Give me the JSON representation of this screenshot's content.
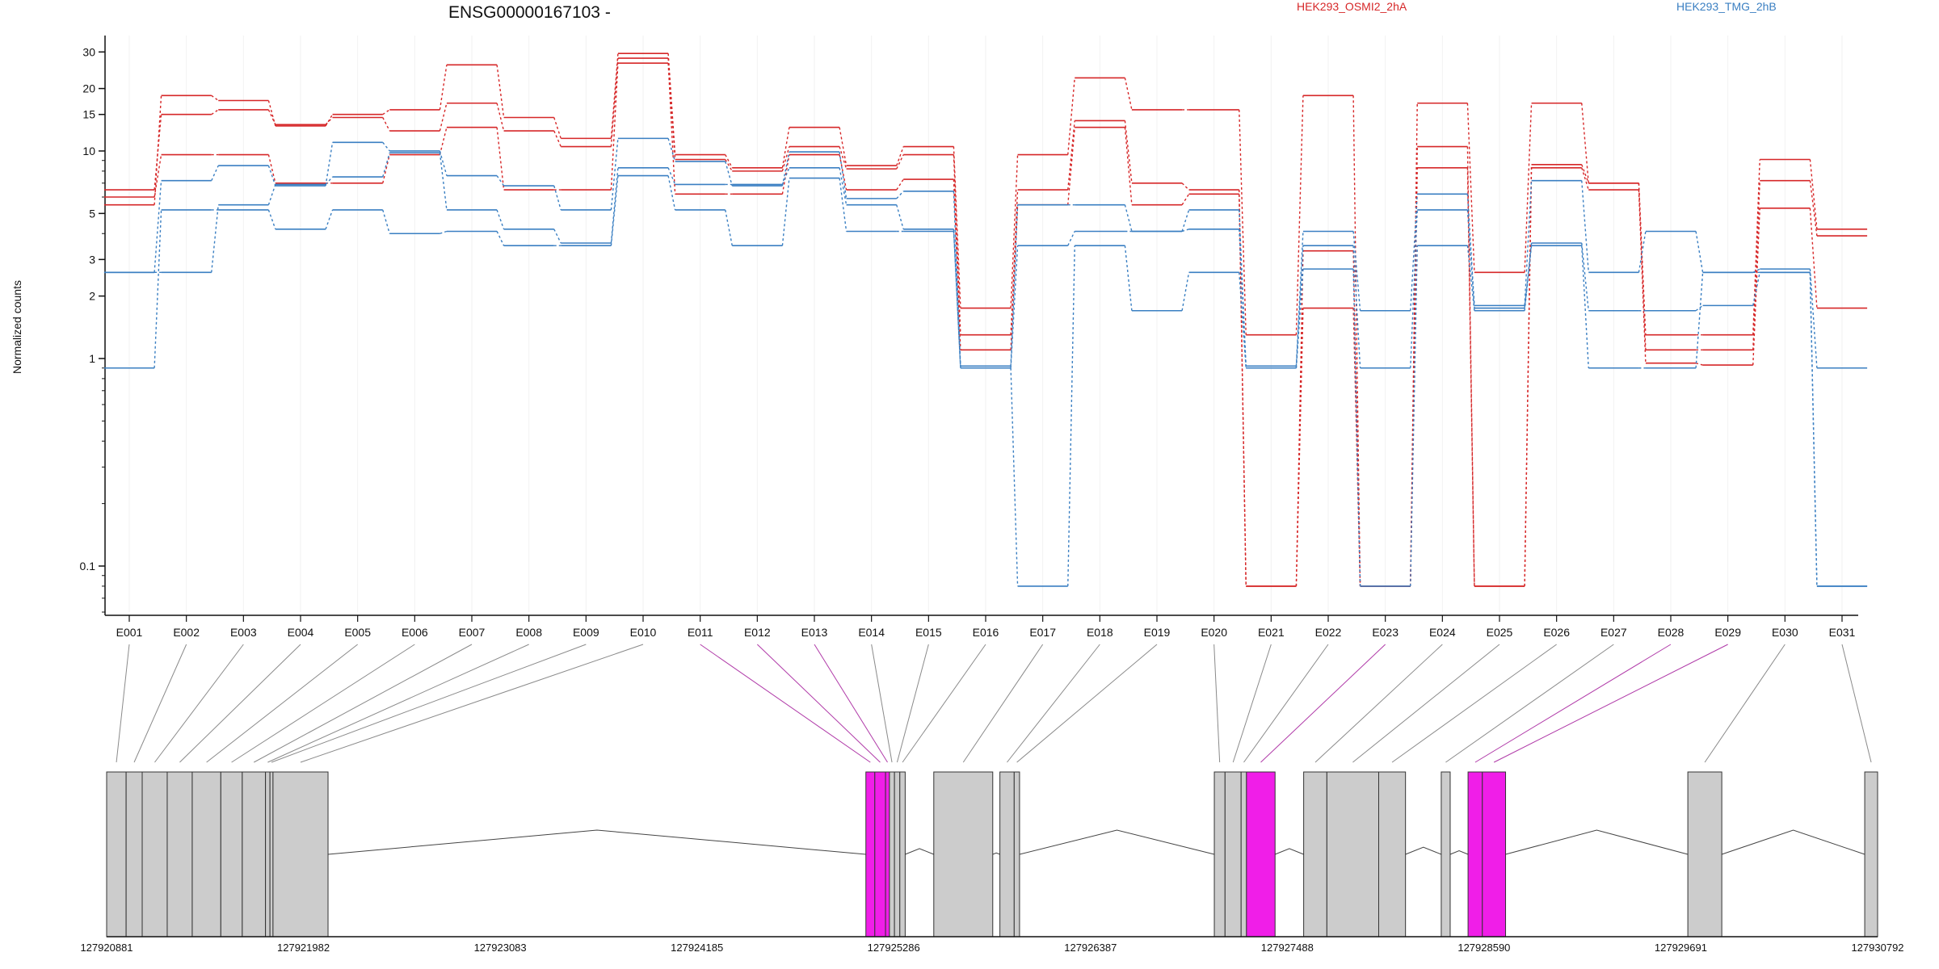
{
  "chart_data": {
    "type": "line",
    "title": "ENSG00000167103 -",
    "ylabel": "Normalized counts",
    "xlabel": "",
    "yscale": "log",
    "ylim": [
      0.06,
      36
    ],
    "yticks": [
      0.1,
      1,
      2,
      3,
      5,
      10,
      15,
      20,
      30
    ],
    "ytick_labels": [
      "0.1",
      "1",
      "2",
      "3",
      "5",
      "10",
      "15",
      "20",
      "30"
    ],
    "grid": true,
    "legend": [
      {
        "label": "HEK293_OSMI2_2hA",
        "color": "#d62728"
      },
      {
        "label": "HEK293_TMG_2hB",
        "color": "#3a7fc2"
      }
    ],
    "categories": [
      "E001",
      "E002",
      "E003",
      "E004",
      "E005",
      "E006",
      "E007",
      "E008",
      "E009",
      "E010",
      "E011",
      "E012",
      "E013",
      "E014",
      "E015",
      "E016",
      "E017",
      "E018",
      "E019",
      "E020",
      "E021",
      "E022",
      "E023",
      "E024",
      "E025",
      "E026",
      "E027",
      "E028",
      "E029",
      "E030",
      "E031"
    ],
    "series": [
      {
        "group": "HEK293_OSMI2_2hA",
        "color": "#d62728",
        "values": [
          5.5,
          18.5,
          17.5,
          13.2,
          15.0,
          15.8,
          26.0,
          14.5,
          11.5,
          29.5,
          9.6,
          8.3,
          13.0,
          8.5,
          10.5,
          1.75,
          9.6,
          22.5,
          15.8,
          15.8,
          1.3,
          18.5,
          0.08,
          17.0,
          2.6,
          17.0,
          7.0,
          1.3,
          1.3,
          9.1,
          4.2
        ]
      },
      {
        "group": "HEK293_OSMI2_2hA",
        "color": "#d62728",
        "values": [
          6.5,
          15.0,
          15.8,
          13.4,
          14.5,
          12.5,
          17.0,
          12.5,
          10.5,
          28.0,
          9.1,
          8.0,
          10.5,
          8.2,
          9.6,
          1.3,
          6.5,
          14.0,
          7.0,
          6.5,
          0.08,
          3.3,
          0.08,
          10.5,
          0.08,
          8.6,
          7.0,
          1.1,
          1.1,
          7.2,
          3.9
        ]
      },
      {
        "group": "HEK293_OSMI2_2hA",
        "color": "#d62728",
        "values": [
          6.0,
          9.6,
          9.6,
          7.0,
          7.0,
          9.6,
          13.0,
          6.5,
          6.5,
          26.5,
          6.2,
          6.2,
          9.6,
          6.5,
          7.3,
          1.1,
          5.5,
          13.0,
          5.5,
          6.2,
          0.08,
          1.75,
          0.08,
          8.3,
          0.08,
          8.3,
          6.5,
          0.95,
          0.93,
          5.3,
          1.75
        ]
      },
      {
        "group": "HEK293_TMG_2hB",
        "color": "#3a7fc2",
        "values": [
          2.6,
          7.2,
          8.5,
          6.8,
          11.0,
          10.0,
          7.6,
          6.8,
          5.2,
          11.5,
          8.9,
          6.8,
          9.9,
          5.9,
          6.4,
          0.92,
          5.5,
          5.5,
          4.1,
          5.2,
          0.92,
          4.1,
          1.7,
          6.2,
          1.8,
          7.2,
          2.6,
          4.1,
          2.6,
          2.7,
          0.9
        ]
      },
      {
        "group": "HEK293_TMG_2hB",
        "color": "#3a7fc2",
        "values": [
          2.6,
          2.6,
          5.5,
          6.9,
          7.5,
          9.8,
          5.2,
          4.2,
          3.6,
          8.3,
          6.9,
          6.9,
          8.3,
          5.5,
          4.2,
          0.9,
          3.5,
          4.1,
          4.1,
          4.2,
          0.9,
          3.5,
          0.9,
          5.2,
          1.75,
          3.6,
          1.7,
          1.7,
          1.8,
          2.6,
          0.08
        ]
      },
      {
        "group": "HEK293_TMG_2hB",
        "color": "#3a7fc2",
        "values": [
          0.9,
          5.2,
          5.2,
          4.2,
          5.2,
          4.0,
          4.1,
          3.5,
          3.5,
          7.6,
          5.2,
          3.5,
          7.4,
          4.1,
          4.1,
          0.9,
          0.08,
          3.5,
          1.7,
          2.6,
          0.9,
          2.7,
          0.08,
          3.5,
          1.7,
          3.5,
          0.9,
          0.9,
          2.6,
          2.6,
          0.08
        ]
      }
    ],
    "gene_model": {
      "coordinate_labels": [
        "127920881",
        "127921982",
        "127923083",
        "127924185",
        "127925286",
        "127926387",
        "127927488",
        "127928590",
        "127929691",
        "127930792"
      ],
      "coordinate_range": [
        127920881,
        127930792
      ],
      "exons": [
        {
          "id": "E001",
          "start": 127920881,
          "end": 127920990,
          "highlight": false
        },
        {
          "id": "E002",
          "start": 127920990,
          "end": 127921080,
          "highlight": false
        },
        {
          "id": "E003",
          "start": 127921080,
          "end": 127921220,
          "highlight": false
        },
        {
          "id": "E004",
          "start": 127921220,
          "end": 127921360,
          "highlight": false
        },
        {
          "id": "E005",
          "start": 127921360,
          "end": 127921520,
          "highlight": false
        },
        {
          "id": "E006",
          "start": 127921520,
          "end": 127921640,
          "highlight": false
        },
        {
          "id": "E007",
          "start": 127921640,
          "end": 127921770,
          "highlight": false
        },
        {
          "id": "E008",
          "start": 127921770,
          "end": 127921795,
          "highlight": false
        },
        {
          "id": "E009",
          "start": 127921795,
          "end": 127921812,
          "highlight": false
        },
        {
          "id": "E010",
          "start": 127921812,
          "end": 127922120,
          "highlight": false
        },
        {
          "id": "E011",
          "start": 127925130,
          "end": 127925180,
          "highlight": true
        },
        {
          "id": "E012",
          "start": 127925180,
          "end": 127925240,
          "highlight": true
        },
        {
          "id": "E013",
          "start": 127925240,
          "end": 127925262,
          "highlight": true
        },
        {
          "id": "E014",
          "start": 127925262,
          "end": 127925290,
          "highlight": false
        },
        {
          "id": "E015",
          "start": 127925290,
          "end": 127925320,
          "highlight": false
        },
        {
          "id": "E016",
          "start": 127925320,
          "end": 127925350,
          "highlight": false
        },
        {
          "id": "E017",
          "start": 127925510,
          "end": 127925840,
          "highlight": false
        },
        {
          "id": "E018",
          "start": 127925880,
          "end": 127925960,
          "highlight": false
        },
        {
          "id": "E019",
          "start": 127925960,
          "end": 127925990,
          "highlight": false
        },
        {
          "id": "E020",
          "start": 127927080,
          "end": 127927140,
          "highlight": false
        },
        {
          "id": "E021",
          "start": 127927140,
          "end": 127927230,
          "highlight": false
        },
        {
          "id": "E022",
          "start": 127927230,
          "end": 127927260,
          "highlight": false
        },
        {
          "id": "E023",
          "start": 127927260,
          "end": 127927420,
          "highlight": true
        },
        {
          "id": "E024",
          "start": 127927580,
          "end": 127927710,
          "highlight": false
        },
        {
          "id": "E025",
          "start": 127927710,
          "end": 127928000,
          "highlight": false
        },
        {
          "id": "E026",
          "start": 127928000,
          "end": 127928150,
          "highlight": false
        },
        {
          "id": "E027",
          "start": 127928350,
          "end": 127928400,
          "highlight": false
        },
        {
          "id": "E028",
          "start": 127928500,
          "end": 127928580,
          "highlight": true
        },
        {
          "id": "E029",
          "start": 127928580,
          "end": 127928710,
          "highlight": true
        },
        {
          "id": "E030",
          "start": 127929730,
          "end": 127929920,
          "highlight": false
        },
        {
          "id": "E031",
          "start": 127930720,
          "end": 127930792,
          "highlight": false
        }
      ],
      "exon_color": "#cccccc",
      "highlight_color": "#f01ee8"
    }
  }
}
